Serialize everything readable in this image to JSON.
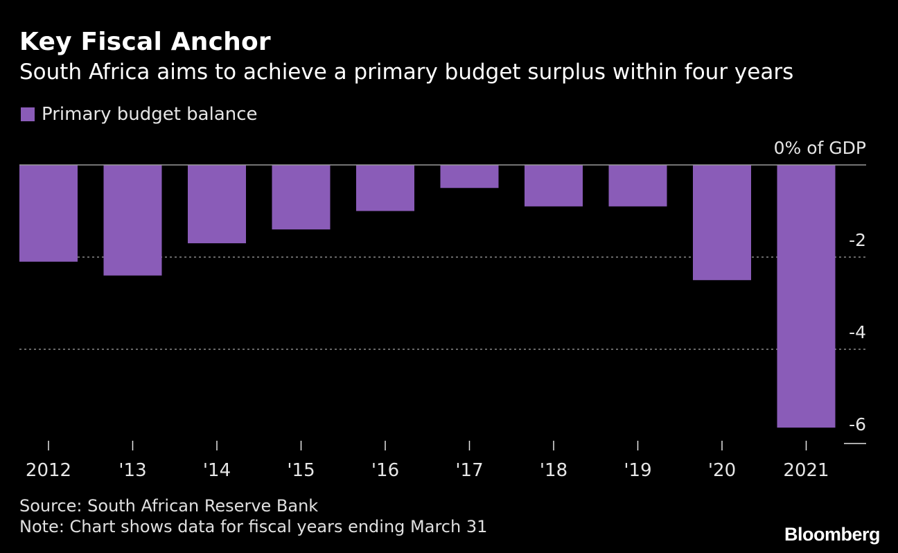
{
  "header": {
    "title": "Key Fiscal Anchor",
    "subtitle": "South Africa aims to achieve a primary budget surplus within four years"
  },
  "legend": {
    "label": "Primary budget balance"
  },
  "colors": {
    "bar": "#8a5cb8",
    "background": "#000000",
    "grid": "#8c8c8c",
    "text": "#e6e6e6"
  },
  "chart_data": {
    "type": "bar",
    "categories": [
      "2012",
      "'13",
      "'14",
      "'15",
      "'16",
      "'17",
      "'18",
      "'19",
      "'20",
      "2021"
    ],
    "series": [
      {
        "name": "Primary budget balance",
        "values": [
          -2.1,
          -2.4,
          -1.7,
          -1.4,
          -1.0,
          -0.5,
          -0.9,
          -0.9,
          -2.5,
          -5.7
        ]
      }
    ],
    "ylim": [
      -6,
      0
    ],
    "yticks": [
      0,
      -2,
      -4,
      -6
    ],
    "ytick_labels": [
      "0% of GDP",
      "-2",
      "-4",
      "-6"
    ],
    "grid": true,
    "legend_position": "top-left"
  },
  "footer": {
    "source": "Source: South African Reserve Bank",
    "note": "Note: Chart shows data for fiscal years ending March 31",
    "brand": "Bloomberg"
  }
}
